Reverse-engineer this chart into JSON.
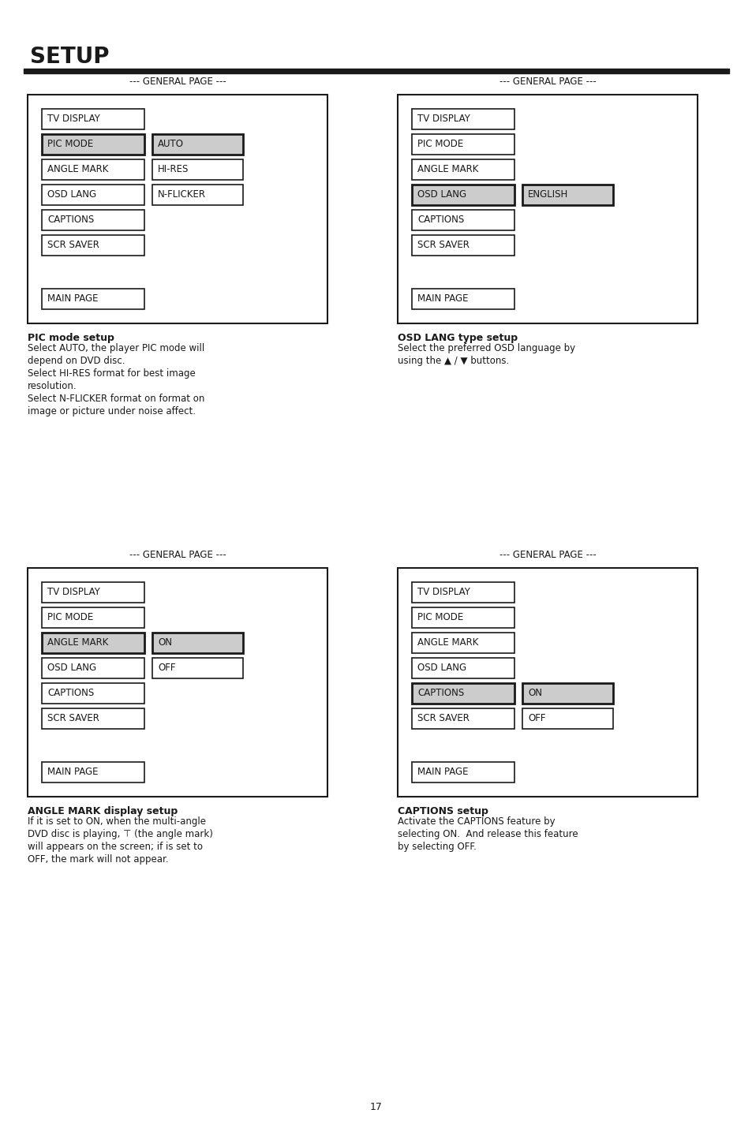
{
  "title": "SETUP",
  "page_number": "17",
  "bg_color": "#ffffff",
  "text_color": "#1a1a1a",
  "panel_header": "--- GENERAL PAGE ---",
  "panels": [
    {
      "id": "top_left",
      "menu_items": [
        "TV DISPLAY",
        "PIC MODE",
        "ANGLE MARK",
        "OSD LANG",
        "CAPTIONS",
        "SCR SAVER"
      ],
      "highlighted_item": 1,
      "submenu_items": [
        "AUTO",
        "HI-RES",
        "N-FLICKER"
      ],
      "highlighted_sub": 0,
      "footer": "MAIN PAGE"
    },
    {
      "id": "top_right",
      "menu_items": [
        "TV DISPLAY",
        "PIC MODE",
        "ANGLE MARK",
        "OSD LANG",
        "CAPTIONS",
        "SCR SAVER"
      ],
      "highlighted_item": 3,
      "submenu_items": [
        "ENGLISH"
      ],
      "highlighted_sub": 0,
      "footer": "MAIN PAGE"
    },
    {
      "id": "bottom_left",
      "menu_items": [
        "TV DISPLAY",
        "PIC MODE",
        "ANGLE MARK",
        "OSD LANG",
        "CAPTIONS",
        "SCR SAVER"
      ],
      "highlighted_item": 2,
      "submenu_items": [
        "ON",
        "OFF"
      ],
      "highlighted_sub": 0,
      "footer": "MAIN PAGE"
    },
    {
      "id": "bottom_right",
      "menu_items": [
        "TV DISPLAY",
        "PIC MODE",
        "ANGLE MARK",
        "OSD LANG",
        "CAPTIONS",
        "SCR SAVER"
      ],
      "highlighted_item": 4,
      "submenu_items": [
        "ON",
        "OFF"
      ],
      "highlighted_sub": 0,
      "footer": "MAIN PAGE"
    }
  ],
  "descriptions": [
    {
      "title": "PIC mode setup",
      "lines": [
        "Select AUTO, the player PIC mode will",
        "depend on DVD disc.",
        "Select HI-RES format for best image",
        "resolution.",
        "Select N-FLICKER format on format on",
        "image or picture under noise affect."
      ]
    },
    {
      "title": "OSD LANG type setup",
      "lines": [
        "Select the preferred OSD language by",
        "using the ▲ / ▼ buttons."
      ]
    },
    {
      "title": "ANGLE MARK display setup",
      "lines": [
        "If it is set to ON, when the multi-angle",
        "DVD disc is playing, ⊤ (the angle mark)",
        "will appears on the screen; if is set to",
        "OFF, the mark will not appear."
      ]
    },
    {
      "title": "CAPTIONS setup",
      "lines": [
        "Activate the CAPTIONS feature by",
        "selecting ON.  And release this feature",
        "by selecting OFF."
      ]
    }
  ],
  "highlight_color": "#cccccc",
  "box_border_color": "#1a1a1a"
}
